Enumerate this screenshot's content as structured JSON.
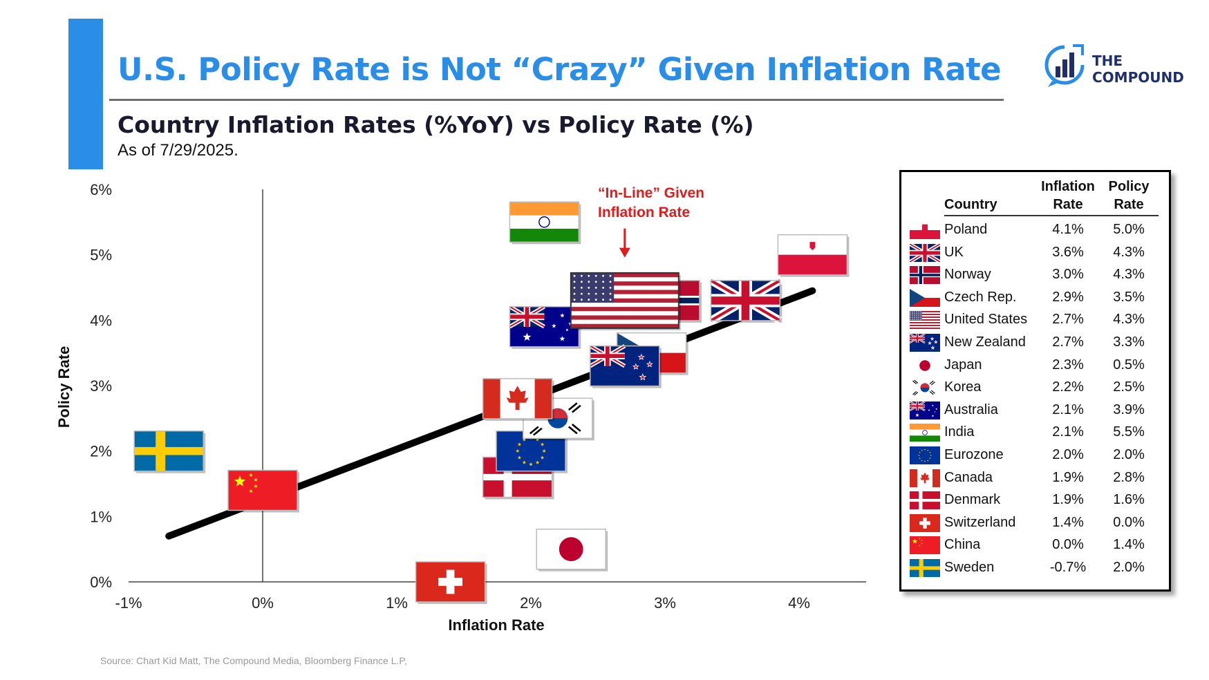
{
  "header": {
    "title": "U.S. Policy Rate is Not “Crazy” Given Inflation Rate",
    "subtitle": "Country Inflation Rates (%YoY) vs Policy Rate (%)",
    "as_of": "As of 7/29/2025.",
    "accent_color": "#2a8ee8"
  },
  "logo": {
    "line1": "THE",
    "line2": "COMPOUND",
    "icon": "bar-chart-circle-icon"
  },
  "source": "Source: Chart Kid Matt, The Compound Media, Bloomberg Finance L.P,",
  "chart_data": {
    "type": "scatter",
    "xlabel": "Inflation Rate",
    "ylabel": "Policy Rate",
    "xlim": [
      -1,
      4.5
    ],
    "ylim": [
      0,
      6
    ],
    "x_ticks": [
      -1,
      0,
      1,
      2,
      3,
      4
    ],
    "x_tick_labels": [
      "-1%",
      "0%",
      "1%",
      "2%",
      "3%",
      "4%"
    ],
    "y_ticks": [
      0,
      1,
      2,
      3,
      4,
      5,
      6
    ],
    "y_tick_labels": [
      "0%",
      "1%",
      "2%",
      "3%",
      "4%",
      "5%",
      "6%"
    ],
    "grid": false,
    "marker": "country-flag",
    "trendline": {
      "x": [
        -0.7,
        4.1
      ],
      "y": [
        0.7,
        4.45
      ]
    },
    "annotation": {
      "line1": "“In-Line” Given",
      "line2": "Inflation Rate",
      "arrow_to": [
        2.7,
        5.0
      ],
      "color": "#e11b1b"
    },
    "points": [
      {
        "country": "Poland",
        "inflation": 4.1,
        "policy": 5.0
      },
      {
        "country": "UK",
        "inflation": 3.6,
        "policy": 4.3
      },
      {
        "country": "Norway",
        "inflation": 3.0,
        "policy": 4.3
      },
      {
        "country": "Czech Rep.",
        "inflation": 2.9,
        "policy": 3.5
      },
      {
        "country": "United States",
        "inflation": 2.7,
        "policy": 4.3
      },
      {
        "country": "New Zealand",
        "inflation": 2.7,
        "policy": 3.3
      },
      {
        "country": "Japan",
        "inflation": 2.3,
        "policy": 0.5
      },
      {
        "country": "Korea",
        "inflation": 2.2,
        "policy": 2.5
      },
      {
        "country": "Australia",
        "inflation": 2.1,
        "policy": 3.9
      },
      {
        "country": "India",
        "inflation": 2.1,
        "policy": 5.5
      },
      {
        "country": "Eurozone",
        "inflation": 2.0,
        "policy": 2.0
      },
      {
        "country": "Canada",
        "inflation": 1.9,
        "policy": 2.8
      },
      {
        "country": "Denmark",
        "inflation": 1.9,
        "policy": 1.6
      },
      {
        "country": "Switzerland",
        "inflation": 1.4,
        "policy": 0.0
      },
      {
        "country": "China",
        "inflation": 0.0,
        "policy": 1.4
      },
      {
        "country": "Sweden",
        "inflation": -0.7,
        "policy": 2.0
      }
    ]
  },
  "table": {
    "headers": {
      "country": "Country",
      "inflation_1": "Inflation",
      "inflation_2": "Rate",
      "policy_1": "Policy",
      "policy_2": "Rate"
    },
    "rows": [
      {
        "country": "Poland",
        "inflation": "4.1%",
        "policy": "5.0%"
      },
      {
        "country": "UK",
        "inflation": "3.6%",
        "policy": "4.3%"
      },
      {
        "country": "Norway",
        "inflation": "3.0%",
        "policy": "4.3%"
      },
      {
        "country": "Czech Rep.",
        "inflation": "2.9%",
        "policy": "3.5%"
      },
      {
        "country": "United States",
        "inflation": "2.7%",
        "policy": "4.3%"
      },
      {
        "country": "New Zealand",
        "inflation": "2.7%",
        "policy": "3.3%"
      },
      {
        "country": "Japan",
        "inflation": "2.3%",
        "policy": "0.5%"
      },
      {
        "country": "Korea",
        "inflation": "2.2%",
        "policy": "2.5%"
      },
      {
        "country": "Australia",
        "inflation": "2.1%",
        "policy": "3.9%"
      },
      {
        "country": "India",
        "inflation": "2.1%",
        "policy": "5.5%"
      },
      {
        "country": "Eurozone",
        "inflation": "2.0%",
        "policy": "2.0%"
      },
      {
        "country": "Canada",
        "inflation": "1.9%",
        "policy": "2.8%"
      },
      {
        "country": "Denmark",
        "inflation": "1.9%",
        "policy": "1.6%"
      },
      {
        "country": "Switzerland",
        "inflation": "1.4%",
        "policy": "0.0%"
      },
      {
        "country": "China",
        "inflation": "0.0%",
        "policy": "1.4%"
      },
      {
        "country": "Sweden",
        "inflation": "-0.7%",
        "policy": "2.0%"
      }
    ]
  }
}
